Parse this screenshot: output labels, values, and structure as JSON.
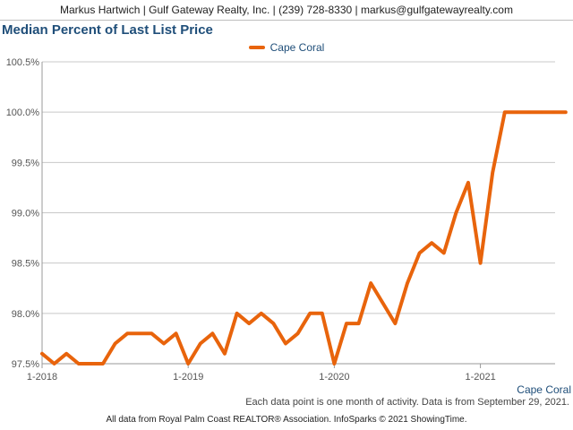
{
  "header": {
    "contact_line": "Markus Hartwich | Gulf Gateway Realty, Inc. | (239) 728-8330 | markus@gulfgatewayrealty.com"
  },
  "chart_data": {
    "type": "line",
    "title": "Median Percent of Last List Price",
    "xlabel": "",
    "ylabel": "",
    "x_tick_labels": [
      "1-2018",
      "1-2019",
      "1-2020",
      "1-2021"
    ],
    "y_tick_labels": [
      "97.5%",
      "98.0%",
      "98.5%",
      "99.0%",
      "99.5%",
      "100.0%",
      "100.5%"
    ],
    "y_ticks": [
      97.5,
      98.0,
      98.5,
      99.0,
      99.5,
      100.0,
      100.5
    ],
    "ylim": [
      97.5,
      100.5
    ],
    "grid": true,
    "legend_position": "top-center",
    "x_axis_caption": "Cape Coral",
    "series": [
      {
        "name": "Cape Coral",
        "color": "#e8640c",
        "x": [
          "2018-01",
          "2018-02",
          "2018-03",
          "2018-04",
          "2018-05",
          "2018-06",
          "2018-07",
          "2018-08",
          "2018-09",
          "2018-10",
          "2018-11",
          "2018-12",
          "2019-01",
          "2019-02",
          "2019-03",
          "2019-04",
          "2019-05",
          "2019-06",
          "2019-07",
          "2019-08",
          "2019-09",
          "2019-10",
          "2019-11",
          "2019-12",
          "2020-01",
          "2020-02",
          "2020-03",
          "2020-04",
          "2020-05",
          "2020-06",
          "2020-07",
          "2020-08",
          "2020-09",
          "2020-10",
          "2020-11",
          "2020-12",
          "2021-01",
          "2021-02",
          "2021-03",
          "2021-04",
          "2021-05",
          "2021-06",
          "2021-07",
          "2021-08"
        ],
        "values": [
          97.6,
          97.5,
          97.6,
          97.5,
          97.5,
          97.5,
          97.7,
          97.8,
          97.8,
          97.8,
          97.7,
          97.8,
          97.5,
          97.7,
          97.8,
          97.6,
          98.0,
          97.9,
          98.0,
          97.9,
          97.7,
          97.8,
          98.0,
          98.0,
          97.5,
          97.9,
          97.9,
          98.3,
          98.1,
          97.9,
          98.3,
          98.6,
          98.7,
          98.6,
          99.0,
          99.3,
          98.5,
          99.4,
          100.0,
          100.0,
          100.0,
          100.0,
          100.0,
          100.0
        ]
      }
    ]
  },
  "footer": {
    "note": "Each data point is one month of activity. Data is from September 29, 2021.",
    "source": "All data from Royal Palm Coast REALTOR® Association. InfoSparks © 2021 ShowingTime."
  }
}
